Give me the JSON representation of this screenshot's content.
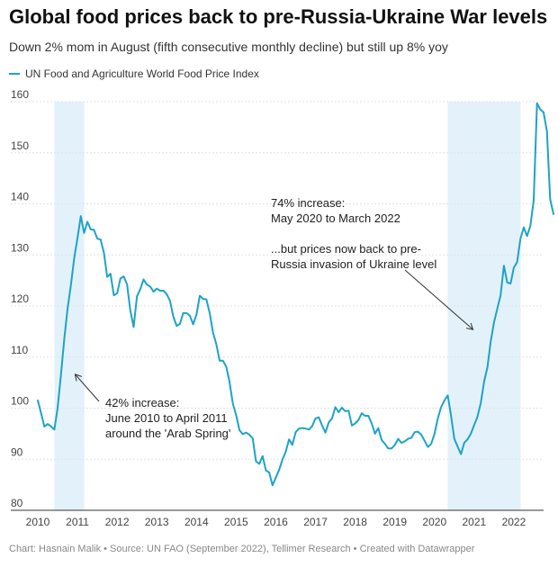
{
  "header": {
    "title": "Global food prices back to pre-Russia-Ukraine War levels",
    "subtitle": "Down 2% mom in August (fifth consecutive monthly decline) but still up 8% yoy"
  },
  "footer": {
    "text": "Chart: Hasnain Malik • Source: UN FAO (September 2022), Tellimer Research • Created with Datawrapper"
  },
  "colors": {
    "line": "#1ea3c7",
    "shade": "#e3f1fa",
    "grid": "#e2e2e2"
  },
  "chart_data": {
    "type": "line",
    "title": "Global food prices back to pre-Russia-Ukraine War levels",
    "legend": "top-left",
    "grid": true,
    "ylim": [
      80,
      160
    ],
    "yticks": [
      80,
      90,
      100,
      110,
      120,
      130,
      140,
      150,
      160
    ],
    "xlim": [
      2010,
      2022.75
    ],
    "xticks": [
      2010,
      2011,
      2012,
      2013,
      2014,
      2015,
      2016,
      2017,
      2018,
      2019,
      2020,
      2021,
      2022
    ],
    "series": [
      {
        "name": "UN Food and Agriculture World Food Price Index",
        "x_start": 2010,
        "x_step_months": 1,
        "values": [
          101.5,
          99.0,
          96.4,
          96.9,
          96.4,
          95.8,
          100.0,
          106.5,
          113.5,
          119.5,
          124.0,
          129.3,
          133.3,
          137.6,
          134.3,
          136.5,
          135.0,
          134.9,
          133.2,
          133.0,
          130.4,
          125.7,
          126.3,
          122.1,
          122.5,
          125.4,
          125.8,
          124.2,
          119.1,
          115.9,
          121.9,
          123.3,
          125.2,
          124.2,
          123.8,
          122.8,
          123.4,
          123.0,
          123.0,
          122.3,
          121.0,
          117.9,
          116.1,
          116.5,
          118.6,
          118.6,
          118.1,
          116.4,
          118.3,
          122.0,
          121.4,
          121.3,
          118.6,
          114.8,
          112.5,
          109.3,
          109.3,
          108.1,
          105.2,
          100.9,
          98.6,
          95.7,
          94.9,
          95.2,
          94.8,
          94.1,
          89.6,
          89.1,
          90.6,
          87.8,
          87.4,
          84.9,
          86.4,
          87.9,
          89.9,
          91.5,
          93.9,
          92.8,
          95.3,
          96.0,
          96.1,
          96.0,
          95.8,
          96.5,
          98.0,
          98.2,
          96.6,
          95.2,
          97.2,
          98.0,
          100.2,
          99.2,
          100.1,
          99.4,
          99.5,
          96.6,
          97.0,
          97.7,
          99.0,
          98.5,
          98.5,
          97.0,
          95.0,
          96.1,
          93.8,
          93.0,
          92.1,
          92.1,
          92.8,
          94.0,
          93.2,
          93.5,
          94.0,
          94.2,
          95.3,
          95.4,
          94.8,
          93.6,
          92.4,
          93.0,
          95.0,
          98.0,
          100.2,
          101.5,
          102.5,
          98.5,
          94.0,
          92.5,
          91.0,
          93.2,
          93.9,
          95.0,
          96.7,
          98.3,
          101.0,
          105.2,
          108.0,
          113.0,
          116.8,
          119.5,
          122.1,
          127.9,
          124.6,
          124.4,
          127.5,
          128.6,
          133.2,
          135.4,
          133.7,
          135.7,
          140.7,
          159.7,
          158.5,
          157.9,
          154.2,
          140.9,
          138.0
        ]
      }
    ],
    "shaded_periods": [
      {
        "start": 2010.42,
        "end": 2011.17,
        "label": "June 2010 to April 2011"
      },
      {
        "start": 2020.33,
        "end": 2022.17,
        "label": "May 2020 to March 2022"
      }
    ],
    "annotations": [
      {
        "lines": [
          "42% increase:",
          "June 2010 to April 2011",
          "around the 'Arab Spring'"
        ],
        "target_x": 2011.0,
        "target_y": 106.5
      },
      {
        "lines": [
          "74% increase:",
          "May 2020 to March 2022",
          "",
          "...but prices now back to pre-",
          "Russia invasion of Ukraine level"
        ],
        "target_x": 2021.0,
        "target_y": 115.5
      }
    ]
  }
}
